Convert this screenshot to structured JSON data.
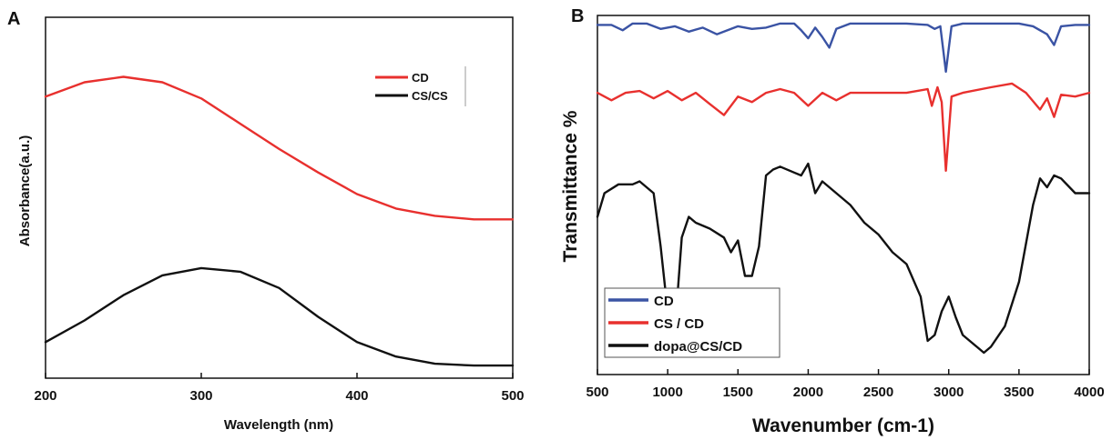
{
  "chart_data": [
    {
      "panel": "A",
      "type": "line",
      "xlabel": "Wavelength (nm)",
      "ylabel": "Absorbance(a.u.)",
      "xlim": [
        200,
        500
      ],
      "x_ticks": [
        "200",
        "300",
        "400",
        "500"
      ],
      "y_ticks": false,
      "grid": false,
      "legend_position": "top-right",
      "series": [
        {
          "name": "CD",
          "color": "#e8302e",
          "x": [
            200,
            225,
            250,
            275,
            300,
            325,
            350,
            375,
            400,
            425,
            450,
            475,
            500
          ],
          "y": [
            0.78,
            0.82,
            0.835,
            0.82,
            0.775,
            0.705,
            0.635,
            0.57,
            0.51,
            0.47,
            0.45,
            0.44,
            0.44
          ]
        },
        {
          "name": "CS/CS",
          "color": "#111111",
          "x": [
            200,
            225,
            250,
            275,
            300,
            325,
            350,
            375,
            400,
            425,
            450,
            475,
            500
          ],
          "y": [
            0.1,
            0.16,
            0.23,
            0.285,
            0.305,
            0.295,
            0.25,
            0.17,
            0.1,
            0.06,
            0.04,
            0.035,
            0.035
          ]
        }
      ]
    },
    {
      "panel": "B",
      "type": "line",
      "xlabel": "Wavenumber (cm-1)",
      "ylabel": "Transmittance %",
      "xlim": [
        500,
        4000
      ],
      "x_ticks": [
        "500",
        "1000",
        "1500",
        "2000",
        "2500",
        "3000",
        "3500",
        "4000"
      ],
      "y_ticks": false,
      "grid": false,
      "legend_position": "bottom-left",
      "series": [
        {
          "name": "CD",
          "color": "#3a53a4",
          "x": [
            500,
            600,
            680,
            750,
            850,
            950,
            1050,
            1150,
            1250,
            1350,
            1400,
            1500,
            1600,
            1700,
            1800,
            1900,
            1950,
            2000,
            2050,
            2100,
            2150,
            2200,
            2300,
            2500,
            2700,
            2850,
            2900,
            2940,
            2980,
            3020,
            3100,
            3300,
            3500,
            3600,
            3700,
            3750,
            3800,
            3900,
            4000
          ],
          "y": [
            0.97,
            0.97,
            0.93,
            0.98,
            0.98,
            0.94,
            0.96,
            0.92,
            0.95,
            0.9,
            0.92,
            0.96,
            0.94,
            0.95,
            0.98,
            0.98,
            0.93,
            0.87,
            0.95,
            0.88,
            0.8,
            0.94,
            0.98,
            0.98,
            0.98,
            0.97,
            0.94,
            0.96,
            0.62,
            0.96,
            0.98,
            0.98,
            0.98,
            0.96,
            0.9,
            0.82,
            0.96,
            0.97,
            0.97
          ]
        },
        {
          "name": "CS / CD",
          "color": "#e8302e",
          "x": [
            500,
            600,
            700,
            800,
            900,
            1000,
            1100,
            1200,
            1300,
            1400,
            1500,
            1600,
            1700,
            1800,
            1900,
            2000,
            2100,
            2200,
            2300,
            2500,
            2700,
            2850,
            2880,
            2920,
            2950,
            2980,
            3020,
            3100,
            3300,
            3450,
            3550,
            3650,
            3700,
            3750,
            3800,
            3900,
            4000
          ],
          "y": [
            0.97,
            0.93,
            0.97,
            0.98,
            0.94,
            0.98,
            0.93,
            0.97,
            0.91,
            0.85,
            0.95,
            0.92,
            0.97,
            0.99,
            0.97,
            0.9,
            0.97,
            0.93,
            0.97,
            0.97,
            0.97,
            0.99,
            0.9,
            1.0,
            0.92,
            0.55,
            0.95,
            0.97,
            1.0,
            1.02,
            0.97,
            0.88,
            0.94,
            0.84,
            0.96,
            0.95,
            0.97
          ]
        },
        {
          "name": "dopa@CS/CD",
          "color": "#111111",
          "x": [
            500,
            550,
            650,
            750,
            800,
            900,
            950,
            1000,
            1050,
            1100,
            1150,
            1200,
            1300,
            1400,
            1450,
            1500,
            1550,
            1600,
            1650,
            1700,
            1750,
            1800,
            1900,
            1950,
            2000,
            2050,
            2100,
            2200,
            2300,
            2400,
            2500,
            2600,
            2700,
            2800,
            2850,
            2900,
            2950,
            3000,
            3050,
            3100,
            3200,
            3250,
            3300,
            3400,
            3500,
            3600,
            3650,
            3700,
            3750,
            3800,
            3900,
            4000
          ],
          "y": [
            0.82,
            0.9,
            0.93,
            0.93,
            0.94,
            0.9,
            0.72,
            0.5,
            0.43,
            0.75,
            0.82,
            0.8,
            0.78,
            0.75,
            0.7,
            0.74,
            0.62,
            0.62,
            0.72,
            0.96,
            0.98,
            0.99,
            0.97,
            0.96,
            1.0,
            0.9,
            0.94,
            0.9,
            0.86,
            0.8,
            0.76,
            0.7,
            0.66,
            0.55,
            0.4,
            0.42,
            0.5,
            0.55,
            0.48,
            0.42,
            0.38,
            0.36,
            0.38,
            0.45,
            0.6,
            0.86,
            0.95,
            0.92,
            0.96,
            0.95,
            0.9,
            0.9
          ]
        }
      ]
    }
  ],
  "panel_letters": {
    "a": "A",
    "b": "B"
  }
}
